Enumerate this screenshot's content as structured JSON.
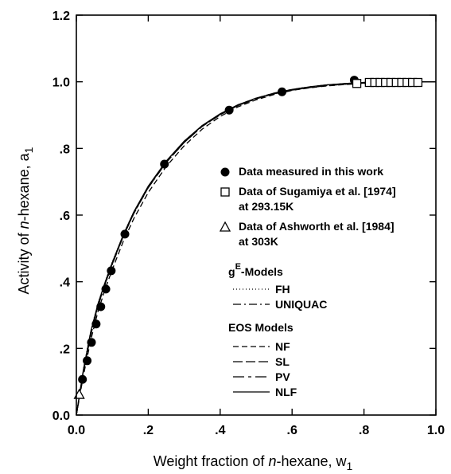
{
  "chart_data": {
    "type": "scatter",
    "xlabel_parts": [
      "Weight fraction of ",
      "n",
      "-hexane, w",
      "1"
    ],
    "ylabel_parts": [
      "Activity of ",
      "n",
      "-hexane, a",
      "1"
    ],
    "xlim": [
      0.0,
      1.0
    ],
    "ylim": [
      0.0,
      1.2
    ],
    "x_ticks": [
      {
        "value": 0.0,
        "label": "0.0"
      },
      {
        "value": 0.2,
        "label": ".2"
      },
      {
        "value": 0.4,
        "label": ".4"
      },
      {
        "value": 0.6,
        "label": ".6"
      },
      {
        "value": 0.8,
        "label": ".8"
      },
      {
        "value": 1.0,
        "label": "1.0"
      }
    ],
    "y_ticks": [
      {
        "value": 0.0,
        "label": "0.0"
      },
      {
        "value": 0.2,
        "label": ".2"
      },
      {
        "value": 0.4,
        "label": ".4"
      },
      {
        "value": 0.6,
        "label": ".6"
      },
      {
        "value": 0.8,
        "label": ".8"
      },
      {
        "value": 1.0,
        "label": "1.0"
      },
      {
        "value": 1.2,
        "label": "1.2"
      }
    ],
    "grid": false,
    "legend_position": "middle-right",
    "series": [
      {
        "name": "Data measured in this work",
        "marker": "filled-circle",
        "x": [
          0.017,
          0.03,
          0.042,
          0.055,
          0.068,
          0.082,
          0.097,
          0.135,
          0.245,
          0.425,
          0.572,
          0.773
        ],
        "y": [
          0.107,
          0.163,
          0.218,
          0.273,
          0.325,
          0.378,
          0.433,
          0.543,
          0.753,
          0.915,
          0.97,
          1.005
        ]
      },
      {
        "name": "Data of Sugamiya et al. [1974]\nat 293.15K",
        "marker": "open-square",
        "x": [
          0.78,
          0.815,
          0.83,
          0.845,
          0.86,
          0.875,
          0.89,
          0.905,
          0.92,
          0.935,
          0.95
        ],
        "y": [
          0.995,
          0.998,
          0.998,
          0.998,
          0.998,
          0.998,
          0.998,
          0.998,
          0.998,
          0.998,
          0.998
        ]
      },
      {
        "name": "Data of Ashworth et al. [1984]\nat 303K",
        "marker": "open-triangle",
        "x": [
          0.008
        ],
        "y": [
          0.062
        ]
      }
    ],
    "lines": [
      {
        "name": "FH",
        "dash": "1,3",
        "x": [
          0.0,
          0.02,
          0.04,
          0.06,
          0.08,
          0.1,
          0.13,
          0.16,
          0.2,
          0.25,
          0.3,
          0.35,
          0.4,
          0.45,
          0.5,
          0.55,
          0.6,
          0.65,
          0.7,
          0.75,
          0.8,
          0.85,
          0.9,
          0.95,
          1.0
        ],
        "y": [
          0.0,
          0.14,
          0.252,
          0.335,
          0.4,
          0.46,
          0.54,
          0.61,
          0.685,
          0.76,
          0.82,
          0.868,
          0.902,
          0.93,
          0.95,
          0.965,
          0.976,
          0.984,
          0.99,
          0.994,
          0.997,
          0.998,
          0.999,
          1.0,
          1.0
        ]
      },
      {
        "name": "UNIQUAC",
        "dash": "10,4,2,4",
        "x": [
          0.0,
          0.02,
          0.04,
          0.06,
          0.08,
          0.1,
          0.13,
          0.16,
          0.2,
          0.25,
          0.3,
          0.35,
          0.4,
          0.45,
          0.5,
          0.55,
          0.6,
          0.65,
          0.7,
          0.75,
          0.8,
          0.85,
          0.9,
          0.95,
          1.0
        ],
        "y": [
          0.0,
          0.13,
          0.24,
          0.325,
          0.392,
          0.452,
          0.535,
          0.605,
          0.682,
          0.758,
          0.818,
          0.866,
          0.901,
          0.929,
          0.949,
          0.964,
          0.975,
          0.983,
          0.989,
          0.993,
          0.996,
          0.998,
          0.999,
          1.0,
          1.0
        ]
      },
      {
        "name": "NF",
        "dash": "7,4",
        "x": [
          0.0,
          0.02,
          0.04,
          0.06,
          0.08,
          0.1,
          0.13,
          0.16,
          0.2,
          0.25,
          0.3,
          0.35,
          0.4,
          0.45,
          0.5,
          0.55,
          0.6,
          0.65,
          0.7,
          0.75,
          0.8,
          0.85,
          0.9,
          0.95,
          1.0
        ],
        "y": [
          0.0,
          0.12,
          0.225,
          0.31,
          0.378,
          0.437,
          0.52,
          0.59,
          0.668,
          0.746,
          0.808,
          0.858,
          0.896,
          0.925,
          0.946,
          0.962,
          0.974,
          0.982,
          0.988,
          0.992,
          0.995,
          0.997,
          0.999,
          1.0,
          1.0
        ]
      },
      {
        "name": "SL",
        "dash": "12,4",
        "x": [
          0.0,
          0.02,
          0.04,
          0.06,
          0.08,
          0.1,
          0.13,
          0.16,
          0.2,
          0.25,
          0.3,
          0.35,
          0.4,
          0.45,
          0.5,
          0.55,
          0.6,
          0.65,
          0.7,
          0.75,
          0.8,
          0.85,
          0.9,
          0.95,
          1.0
        ],
        "y": [
          0.0,
          0.136,
          0.246,
          0.33,
          0.396,
          0.455,
          0.536,
          0.606,
          0.683,
          0.758,
          0.818,
          0.866,
          0.901,
          0.929,
          0.949,
          0.964,
          0.975,
          0.983,
          0.989,
          0.993,
          0.996,
          0.998,
          0.999,
          1.0,
          1.0
        ]
      },
      {
        "name": "PV",
        "dash": "14,5,4,5",
        "x": [
          0.0,
          0.02,
          0.04,
          0.06,
          0.08,
          0.1,
          0.13,
          0.16,
          0.2,
          0.25,
          0.3,
          0.35,
          0.4,
          0.45,
          0.5,
          0.55,
          0.6,
          0.65,
          0.7,
          0.75,
          0.8,
          0.85,
          0.9,
          0.95,
          1.0
        ],
        "y": [
          0.0,
          0.132,
          0.242,
          0.327,
          0.394,
          0.453,
          0.536,
          0.606,
          0.684,
          0.76,
          0.82,
          0.868,
          0.903,
          0.931,
          0.951,
          0.966,
          0.977,
          0.985,
          0.991,
          0.995,
          0.998,
          0.999,
          1.0,
          1.0,
          1.0
        ]
      },
      {
        "name": "NLF",
        "dash": "",
        "x": [
          0.0,
          0.02,
          0.04,
          0.06,
          0.08,
          0.1,
          0.13,
          0.16,
          0.2,
          0.25,
          0.3,
          0.35,
          0.4,
          0.45,
          0.5,
          0.55,
          0.6,
          0.65,
          0.7,
          0.75,
          0.8,
          0.85,
          0.9,
          0.95,
          1.0
        ],
        "y": [
          0.0,
          0.138,
          0.25,
          0.333,
          0.399,
          0.458,
          0.54,
          0.61,
          0.687,
          0.762,
          0.822,
          0.869,
          0.904,
          0.931,
          0.951,
          0.966,
          0.977,
          0.985,
          0.991,
          0.995,
          0.998,
          0.999,
          1.0,
          1.0,
          1.0
        ]
      }
    ],
    "legend": {
      "markers": [
        {
          "marker": "filled-circle",
          "lines": [
            "Data measured in this work"
          ]
        },
        {
          "marker": "open-square",
          "lines": [
            "Data of Sugamiya et al. [1974]",
            "at 293.15K"
          ]
        },
        {
          "marker": "open-triangle",
          "lines": [
            "Data of Ashworth et al. [1984]",
            "at 303K"
          ]
        }
      ],
      "ge_heading": {
        "base": "g",
        "sup": "E",
        "rest": "-Models"
      },
      "ge_models": [
        {
          "label": "FH",
          "dash": "1,3"
        },
        {
          "label": "UNIQUAC",
          "dash": "10,4,2,4"
        }
      ],
      "eos_heading": "EOS Models",
      "eos_models": [
        {
          "label": "NF",
          "dash": "7,4"
        },
        {
          "label": "SL",
          "dash": "12,4"
        },
        {
          "label": "PV",
          "dash": "14,5,4,5"
        },
        {
          "label": "NLF",
          "dash": ""
        }
      ]
    }
  }
}
